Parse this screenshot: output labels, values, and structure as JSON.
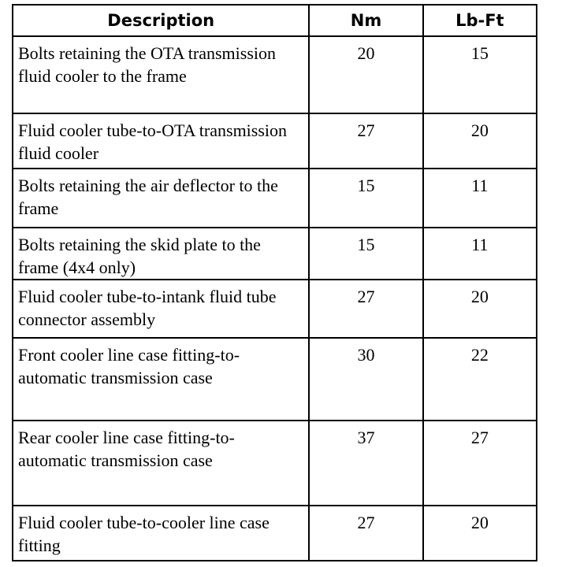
{
  "table": {
    "headers": [
      "Description",
      "Nm",
      "Lb-Ft"
    ],
    "rows": [
      {
        "description": "Bolts retaining the OTA transmission fluid cooler to the frame",
        "nm": "20",
        "lbft": "15"
      },
      {
        "description": "Fluid cooler tube-to-OTA transmission fluid cooler",
        "nm": "27",
        "lbft": "20"
      },
      {
        "description": "Bolts retaining the air deflector to the frame",
        "nm": "15",
        "lbft": "11"
      },
      {
        "description": "Bolts retaining the skid plate to the frame (4x4 only)",
        "nm": "15",
        "lbft": "11"
      },
      {
        "description": "Fluid cooler tube-to-intank fluid tube connector assembly",
        "nm": "27",
        "lbft": "20"
      },
      {
        "description": "Front cooler line case fitting-to-automatic transmission case",
        "nm": "30",
        "lbft": "22"
      },
      {
        "description": "Rear cooler line case fitting-to-automatic transmission case",
        "nm": "37",
        "lbft": "27"
      },
      {
        "description": "Fluid cooler tube-to-cooler line case fitting",
        "nm": "27",
        "lbft": "20"
      }
    ]
  }
}
